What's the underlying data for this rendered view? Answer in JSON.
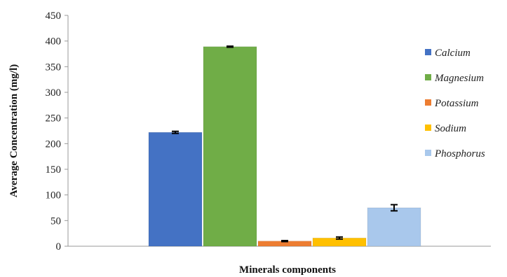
{
  "chart_data": {
    "type": "bar",
    "title": "",
    "xlabel": "Minerals components",
    "ylabel": "Average Concentration (mg/l)",
    "ylim": [
      0,
      450
    ],
    "yticks": [
      0,
      50,
      100,
      150,
      200,
      250,
      300,
      350,
      400,
      450
    ],
    "grid": false,
    "legend_position": "right",
    "series": [
      {
        "name": "Calcium",
        "value": 222,
        "error": 2,
        "color": "#4472C4"
      },
      {
        "name": "Magnesium",
        "value": 389,
        "error": 1,
        "color": "#70AD47"
      },
      {
        "name": "Potassium",
        "value": 10,
        "error": 1,
        "color": "#ED7D31"
      },
      {
        "name": "Sodium",
        "value": 16,
        "error": 2,
        "color": "#FFC000"
      },
      {
        "name": "Phosphorus",
        "value": 75,
        "error": 6,
        "color": "#A9C8EC"
      }
    ]
  }
}
